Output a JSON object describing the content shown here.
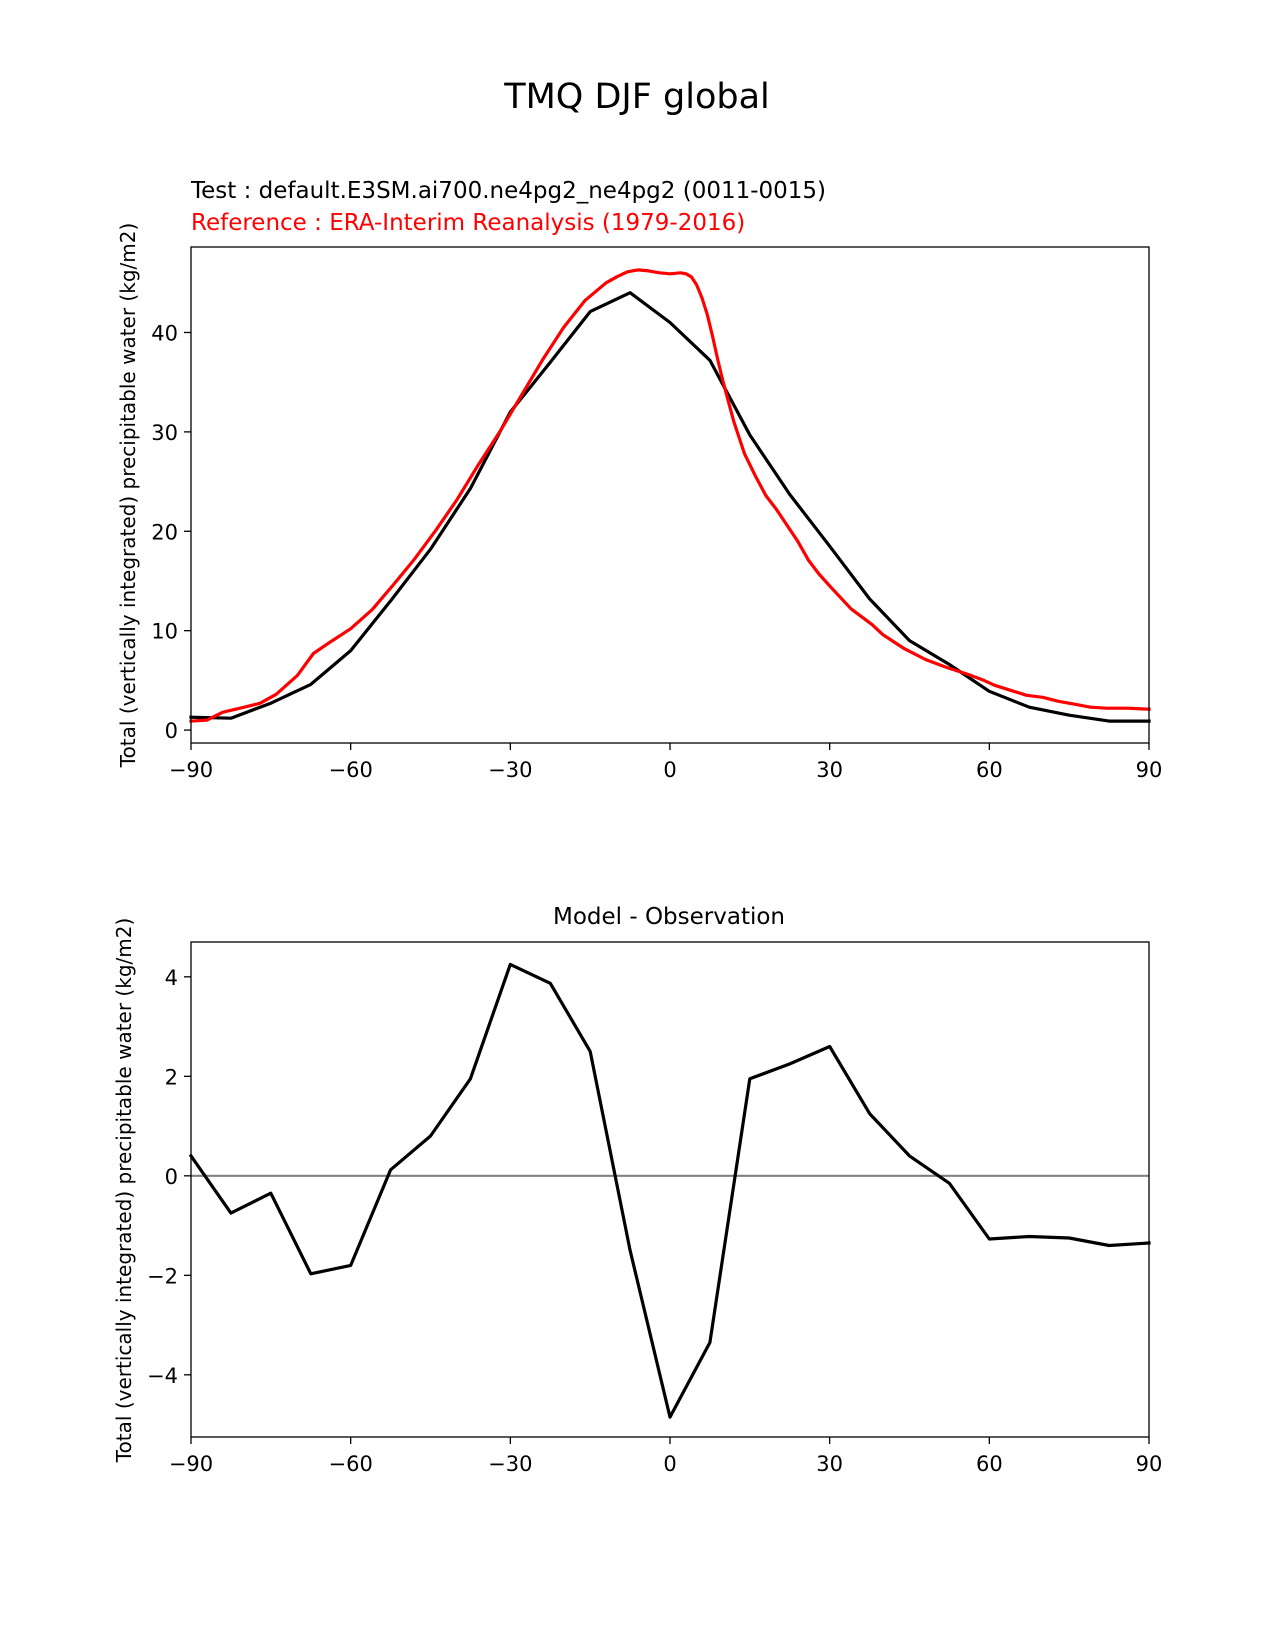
{
  "figure": {
    "suptitle": "TMQ DJF global",
    "colors": {
      "test": "#000000",
      "reference": "#ff0000",
      "zero_line": "#808080"
    }
  },
  "chart_data": [
    {
      "type": "line",
      "title_test": "Test : default.E3SM.ai700.ne4pg2_ne4pg2 (0011-0015)",
      "title_reference": "Reference : ERA-Interim Reanalysis (1979-2016)",
      "xlabel": "",
      "ylabel": "Total (vertically integrated) precipitable water (kg/m2)",
      "xlim": [
        -90,
        90
      ],
      "ylim": [
        -1.3,
        48.6
      ],
      "xticks": [
        -90,
        -60,
        -30,
        0,
        30,
        60,
        90
      ],
      "xtick_labels": [
        "−90",
        "−60",
        "−30",
        "0",
        "30",
        "60",
        "90"
      ],
      "yticks": [
        0,
        10,
        20,
        30,
        40
      ],
      "ytick_labels": [
        "0",
        "10",
        "20",
        "30",
        "40"
      ],
      "series": [
        {
          "name": "Test",
          "color": "#000000",
          "x": [
            -90,
            -82.5,
            -75,
            -67.5,
            -60,
            -52.5,
            -45,
            -37.5,
            -30,
            -22.5,
            -15,
            -7.5,
            0,
            7.5,
            15,
            22.5,
            30,
            37.5,
            45,
            52.5,
            60,
            67.5,
            75,
            82.5,
            90
          ],
          "y": [
            1.3,
            1.2,
            2.7,
            4.6,
            8.0,
            13.0,
            18.2,
            24.3,
            32.0,
            37.0,
            42.1,
            44.0,
            41.0,
            37.2,
            29.7,
            23.7,
            18.5,
            13.2,
            9.0,
            6.6,
            3.9,
            2.3,
            1.5,
            0.9,
            0.9
          ]
        },
        {
          "name": "Reference",
          "color": "#ff0000",
          "x": [
            -90,
            -87,
            -84,
            -80,
            -77,
            -74,
            -70,
            -67,
            -64,
            -60,
            -56,
            -52,
            -48,
            -44,
            -40,
            -36,
            -32,
            -28,
            -24,
            -20,
            -16,
            -14,
            -12,
            -10,
            -8,
            -6,
            -4,
            -2,
            0,
            2,
            3,
            4,
            5,
            6,
            7,
            8,
            9,
            10,
            12,
            14,
            16,
            18,
            20,
            24,
            26,
            28,
            30,
            34,
            38,
            40,
            44,
            48,
            52,
            56,
            59,
            61,
            64,
            67,
            70,
            73,
            76,
            79,
            82,
            86,
            90
          ],
          "y": [
            0.9,
            1.0,
            1.8,
            2.3,
            2.7,
            3.6,
            5.5,
            7.7,
            8.8,
            10.2,
            12.1,
            14.6,
            17.2,
            20.1,
            23.2,
            26.7,
            30.0,
            33.6,
            37.2,
            40.5,
            43.2,
            44.1,
            45.0,
            45.6,
            46.1,
            46.3,
            46.2,
            46.0,
            45.9,
            46.0,
            45.9,
            45.6,
            44.8,
            43.5,
            41.8,
            39.6,
            37.2,
            35.0,
            31.0,
            27.8,
            25.6,
            23.6,
            22.2,
            19.0,
            17.1,
            15.7,
            14.5,
            12.2,
            10.6,
            9.6,
            8.2,
            7.1,
            6.3,
            5.6,
            5.0,
            4.5,
            4.0,
            3.5,
            3.3,
            2.9,
            2.6,
            2.3,
            2.2,
            2.2,
            2.1
          ]
        }
      ]
    },
    {
      "type": "line",
      "title": "Model - Observation",
      "xlabel": "",
      "ylabel": "Total (vertically integrated) precipitable water (kg/m2)",
      "xlim": [
        -90,
        90
      ],
      "ylim": [
        -5.25,
        4.7
      ],
      "xticks": [
        -90,
        -60,
        -30,
        0,
        30,
        60,
        90
      ],
      "xtick_labels": [
        "−90",
        "−60",
        "−30",
        "0",
        "30",
        "60",
        "90"
      ],
      "yticks": [
        -4,
        -2,
        0,
        2,
        4
      ],
      "ytick_labels": [
        "−4",
        "−2",
        "0",
        "2",
        "4"
      ],
      "zero_line": 0,
      "series": [
        {
          "name": "Model - Observation",
          "color": "#000000",
          "x": [
            -90,
            -82.5,
            -75,
            -67.5,
            -60,
            -52.5,
            -45,
            -37.5,
            -30,
            -22.5,
            -15,
            -7.5,
            0,
            7.5,
            15,
            22.5,
            30,
            37.5,
            45,
            52.5,
            60,
            67.5,
            75,
            82.5,
            90
          ],
          "y": [
            0.4,
            -0.75,
            -0.35,
            -1.97,
            -1.8,
            0.12,
            0.8,
            1.95,
            4.25,
            3.87,
            2.5,
            -1.5,
            -4.85,
            -3.35,
            1.95,
            2.25,
            2.6,
            1.25,
            0.4,
            -0.15,
            -1.27,
            -1.22,
            -1.25,
            -1.4,
            -1.35
          ]
        }
      ]
    }
  ]
}
